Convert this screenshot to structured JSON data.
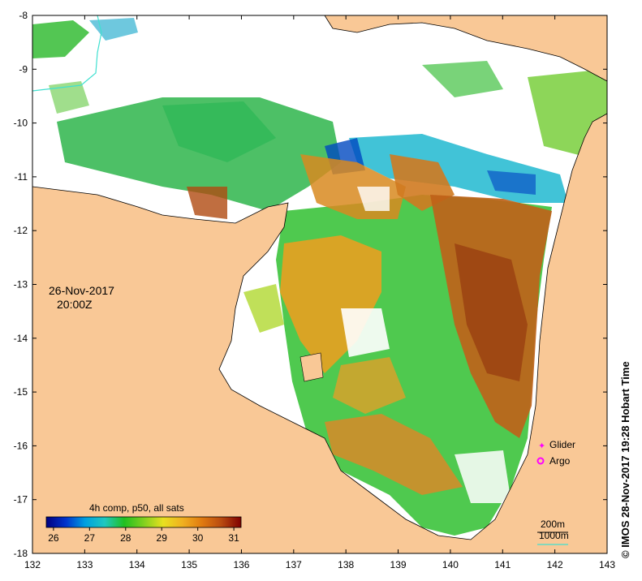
{
  "timestamp": {
    "date": "26-Nov-2017",
    "time": "20:00Z"
  },
  "colorbar": {
    "title": "4h comp, p50, all sats",
    "ticks": [
      "26",
      "27",
      "28",
      "29",
      "30",
      "31"
    ],
    "range": [
      25.8,
      31.2
    ],
    "colors": [
      "#000080",
      "#0033cc",
      "#00a0e0",
      "#20c8c0",
      "#20c020",
      "#80d020",
      "#e8e020",
      "#f0b020",
      "#e07a10",
      "#b84a10",
      "#800000"
    ]
  },
  "axes": {
    "x_labels": [
      "132",
      "133",
      "134",
      "135",
      "136",
      "137",
      "138",
      "139",
      "140",
      "141",
      "142",
      "143"
    ],
    "y_labels": [
      "-8",
      "-9",
      "-10",
      "-11",
      "-12",
      "-13",
      "-14",
      "-15",
      "-16",
      "-17",
      "-18"
    ]
  },
  "legend": {
    "glider": "Glider",
    "argo": "Argo",
    "glider_color": "#ff00ff",
    "argo_color": "#ff00ff"
  },
  "scale": {
    "c200": "200m",
    "c1000": "1000m",
    "c1000_color": "#40e0d0"
  },
  "credit": "© IMOS 28-Nov-2017 19:28 Hobart Time",
  "colors": {
    "land": "#f9c896",
    "cloud": "#ffffff"
  }
}
